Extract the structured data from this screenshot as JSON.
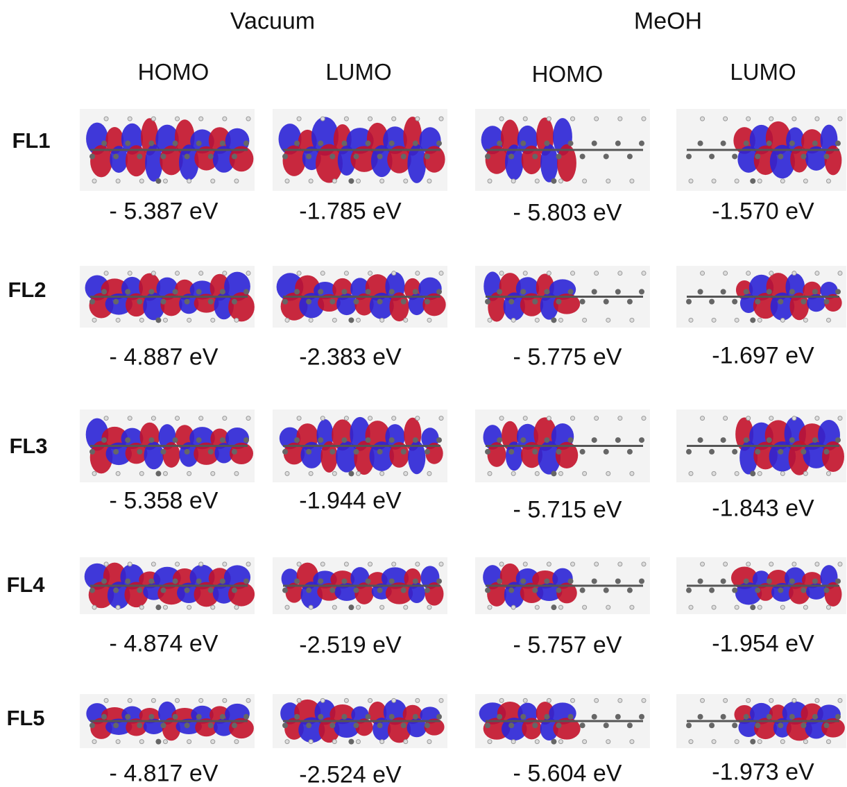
{
  "groups": [
    "Vacuum",
    "MeOH"
  ],
  "columns": [
    "HOMO",
    "LUMO",
    "HOMO",
    "LUMO"
  ],
  "rows": [
    {
      "label": "FL1",
      "energies": [
        "- 5.387 eV",
        "-1.785 eV",
        "- 5.803 eV",
        "-1.570 eV"
      ]
    },
    {
      "label": "FL2",
      "energies": [
        "- 4.887 eV",
        "-2.383 eV",
        "- 5.775 eV",
        "-1.697 eV"
      ]
    },
    {
      "label": "FL3",
      "energies": [
        "- 5.358 eV",
        "-1.944 eV",
        "- 5.715 eV",
        "-1.843 eV"
      ]
    },
    {
      "label": "FL4",
      "energies": [
        "- 4.874 eV",
        "-2.519 eV",
        "- 5.757 eV",
        "-1.954 eV"
      ]
    },
    {
      "label": "FL5",
      "energies": [
        "- 4.817 eV",
        "-2.524 eV",
        "- 5.604 eV",
        "-1.973 eV"
      ]
    }
  ]
}
